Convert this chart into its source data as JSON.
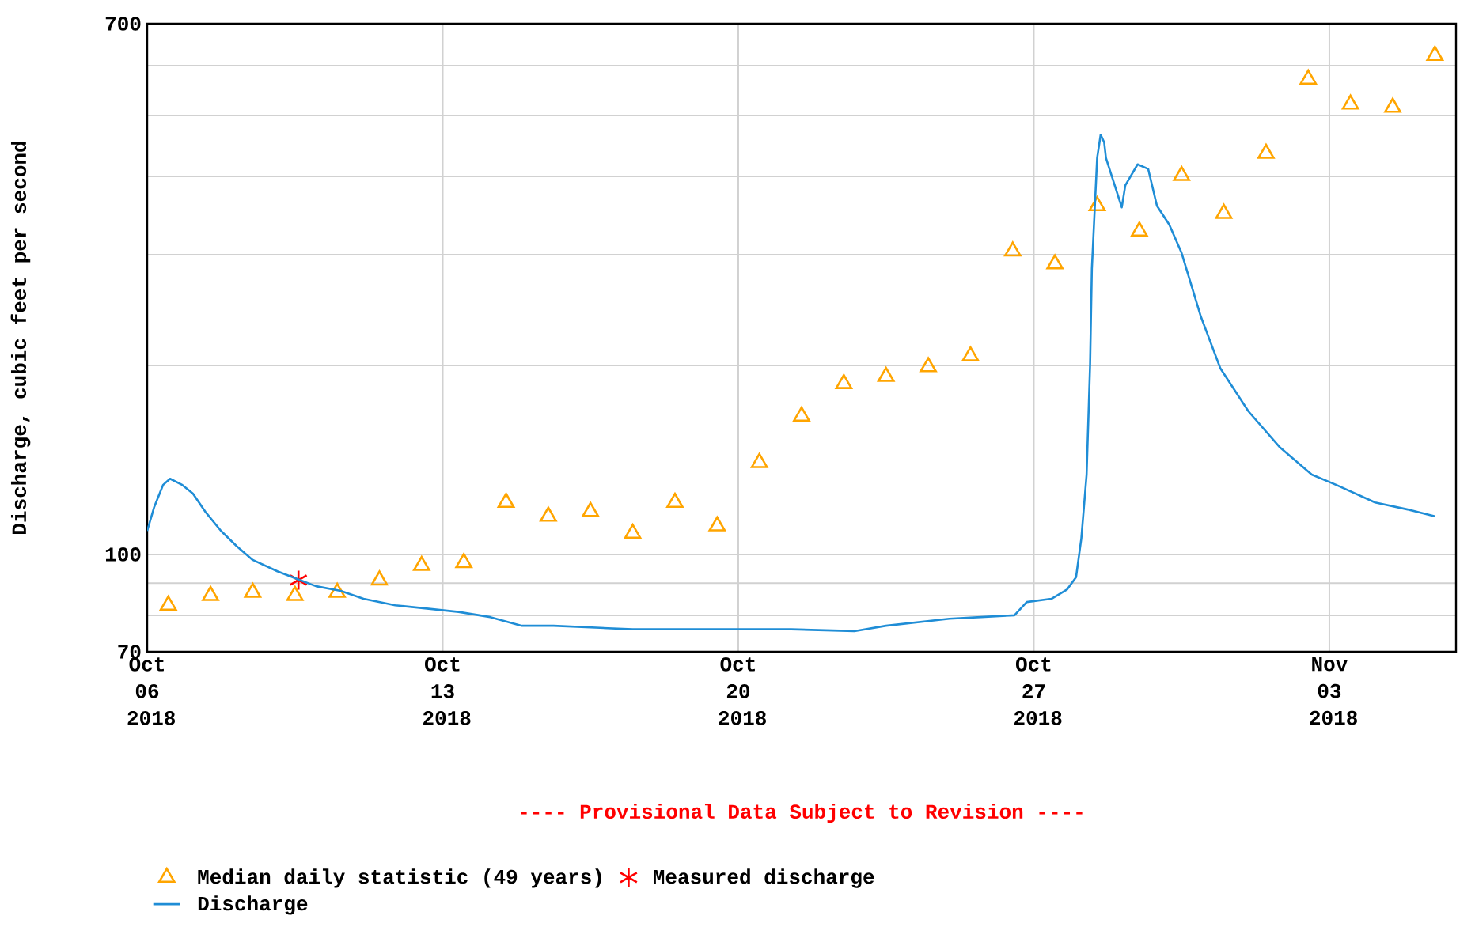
{
  "chart_data": {
    "type": "line",
    "ylabel": "Discharge, cubic feet per second",
    "log": "y",
    "grid": true,
    "legend": "bottom",
    "xlim": [
      "2018-10-06T00:00",
      "2018-11-06T00:00"
    ],
    "xticks": [
      {
        "value": "2018-10-06",
        "label": "Oct 06 2018"
      },
      {
        "value": "2018-10-13",
        "label": "Oct 13 2018"
      },
      {
        "value": "2018-10-20",
        "label": "Oct 20 2018"
      },
      {
        "value": "2018-10-27",
        "label": "Oct 27 2018"
      },
      {
        "value": "2018-11-03",
        "label": "Nov 03 2018"
      }
    ],
    "ylim": [
      70,
      700
    ],
    "yticks": [
      70,
      {
        "value": 80,
        "label": null
      },
      {
        "value": 90,
        "label": null
      },
      100,
      {
        "value": 200,
        "label": null
      },
      {
        "value": 300,
        "label": null
      },
      {
        "value": 400,
        "label": null
      },
      {
        "value": 500,
        "label": null
      },
      {
        "value": 600,
        "label": null
      },
      700
    ],
    "annotations": [
      "---- Provisional Data Subject to Revision ----"
    ],
    "series": [
      {
        "name": "Median daily statistic (49 years)",
        "type": "scatter",
        "marker": "triangle",
        "color": "#ffa500",
        "x": [
          "2018-10-06T12:00",
          "2018-10-07T12:00",
          "2018-10-08T12:00",
          "2018-10-09T12:00",
          "2018-10-10T12:00",
          "2018-10-11T12:00",
          "2018-10-12T12:00",
          "2018-10-13T12:00",
          "2018-10-14T12:00",
          "2018-10-15T12:00",
          "2018-10-16T12:00",
          "2018-10-17T12:00",
          "2018-10-18T12:00",
          "2018-10-19T12:00",
          "2018-10-20T12:00",
          "2018-10-21T12:00",
          "2018-10-22T12:00",
          "2018-10-23T12:00",
          "2018-10-24T12:00",
          "2018-10-25T12:00",
          "2018-10-26T12:00",
          "2018-10-27T12:00",
          "2018-10-28T12:00",
          "2018-10-29T12:00",
          "2018-10-30T12:00",
          "2018-10-31T12:00",
          "2018-11-01T12:00",
          "2018-11-02T12:00",
          "2018-11-03T12:00",
          "2018-11-04T12:00",
          "2018-11-05T12:00"
        ],
        "values": [
          83,
          86,
          87,
          86,
          87,
          91,
          96,
          97,
          121,
          115,
          117,
          108,
          121,
          111,
          140,
          166,
          187,
          192,
          199,
          207,
          304,
          290,
          359,
          327,
          401,
          349,
          435,
          571,
          521,
          515,
          623
        ]
      },
      {
        "name": "Measured discharge",
        "type": "scatter",
        "marker": "cross",
        "color": "#ff0000",
        "x": [
          "2018-10-09T14:00"
        ],
        "values": [
          91
        ]
      },
      {
        "name": "Discharge",
        "marker": "none",
        "color": "#1f8dd6",
        "x": [
          "2018-10-06T00:00",
          "2018-10-06T04:00",
          "2018-10-06T09:00",
          "2018-10-06T13:00",
          "2018-10-06T20:00",
          "2018-10-07T02:00",
          "2018-10-07T09:00",
          "2018-10-07T18:00",
          "2018-10-08T03:00",
          "2018-10-08T12:00",
          "2018-10-09T02:00",
          "2018-10-09T15:00",
          "2018-10-10T00:00",
          "2018-10-10T14:00",
          "2018-10-11T03:00",
          "2018-10-11T21:00",
          "2018-10-12T15:00",
          "2018-10-13T09:00",
          "2018-10-14T03:00",
          "2018-10-14T21:00",
          "2018-10-15T15:00",
          "2018-10-17T12:00",
          "2018-10-19T09:00",
          "2018-10-21T06:00",
          "2018-10-22T18:00",
          "2018-10-23T12:00",
          "2018-10-25T00:00",
          "2018-10-25T18:00",
          "2018-10-26T13:00",
          "2018-10-26T20:00",
          "2018-10-27T10:00",
          "2018-10-27T19:00",
          "2018-10-28T00:00",
          "2018-10-28T03:00",
          "2018-10-28T06:00",
          "2018-10-28T08:00",
          "2018-10-28T09:00",
          "2018-10-28T12:00",
          "2018-10-28T14:00",
          "2018-10-28T16:00",
          "2018-10-28T17:00",
          "2018-10-29T02:00",
          "2018-10-29T04:00",
          "2018-10-29T11:00",
          "2018-10-29T17:00",
          "2018-10-29T22:00",
          "2018-10-30T05:00",
          "2018-10-30T12:00",
          "2018-10-30T23:00",
          "2018-10-31T10:00",
          "2018-11-01T02:00",
          "2018-11-01T20:00",
          "2018-11-02T14:00",
          "2018-11-03T04:00",
          "2018-11-04T02:00",
          "2018-11-04T20:00",
          "2018-11-05T12:00"
        ],
        "values": [
          109,
          119,
          129,
          132,
          129,
          125,
          117,
          109,
          103,
          98,
          94,
          91,
          89,
          87.5,
          85,
          83,
          82,
          81,
          79.5,
          77,
          77,
          76,
          76,
          76,
          75.5,
          77,
          79,
          79.5,
          80,
          84,
          85,
          88,
          92,
          106,
          134,
          201,
          285,
          428,
          466,
          453,
          428,
          357,
          387,
          418,
          411,
          359,
          335,
          302,
          239,
          198,
          169,
          148,
          134,
          129,
          121,
          118,
          115
        ]
      }
    ]
  }
}
